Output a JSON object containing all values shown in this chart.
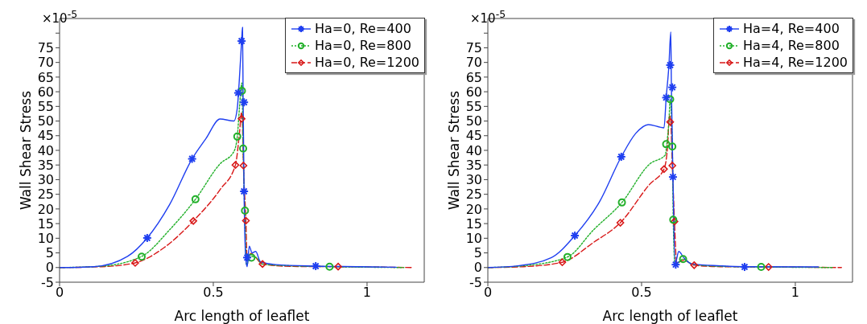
{
  "chart_data": [
    {
      "type": "line",
      "xlabel": "Arc length of leaflet",
      "ylabel": "Wall Shear Stress",
      "annotations": [
        "×10$^{-5}$"
      ],
      "xlim": [
        0,
        1.186
      ],
      "ylim": [
        -5,
        85
      ],
      "xticks": [
        0,
        0.5,
        1
      ],
      "yticks": [
        -5,
        0,
        5,
        10,
        15,
        20,
        25,
        30,
        35,
        40,
        45,
        50,
        55,
        60,
        65,
        70,
        75,
        {
          "value": 80,
          "label": null
        }
      ],
      "legend": "top right",
      "series": [
        {
          "name": "Ha=0, Re=400",
          "color": "#1f3ff0",
          "line_style": "solid",
          "x": [
            0,
            0.112,
            0.221,
            0.285,
            0.358,
            0.431,
            0.476,
            0.522,
            0.567,
            0.578,
            0.584,
            0.592,
            0.595,
            0.597,
            0.6,
            0.606,
            0.61,
            0.617,
            0.626,
            0.638,
            0.653,
            0.703,
            0.831,
            0.977,
            1.095
          ],
          "values": [
            0,
            0.3,
            3.8,
            10.1,
            21.5,
            37.1,
            44,
            50.7,
            50,
            54.4,
            63,
            77.3,
            82,
            56.6,
            26,
            2.5,
            0.3,
            7.3,
            5,
            5.5,
            2,
            1,
            0.5,
            0.3,
            0.1
          ]
        },
        {
          "name": "Ha=0, Re=800",
          "color": "#22b02a",
          "line_style": "dotted",
          "x": [
            0,
            0.13,
            0.267,
            0.358,
            0.442,
            0.522,
            0.567,
            0.578,
            0.585,
            0.593,
            0.597,
            0.602,
            0.608,
            0.622,
            0.64,
            0.658,
            0.749,
            0.878,
            1.12
          ],
          "values": [
            0,
            0.4,
            3.8,
            12.9,
            23.3,
            35.4,
            39.6,
            44.7,
            54.4,
            63,
            40.7,
            19.4,
            1,
            3.8,
            3.4,
            1.2,
            0.6,
            0.3,
            0
          ]
        },
        {
          "name": "Ha=0, Re=1200",
          "color": "#d81818",
          "line_style": "dashed",
          "x": [
            0,
            0.139,
            0.246,
            0.34,
            0.435,
            0.522,
            0.572,
            0.585,
            0.592,
            0.595,
            0.598,
            0.606,
            0.61,
            0.622,
            0.66,
            0.749,
            0.906,
            1.15
          ],
          "values": [
            0,
            0.3,
            1.6,
            6.8,
            15.9,
            26.6,
            35,
            45.8,
            53,
            48,
            34.8,
            16,
            2.5,
            4.8,
            1.2,
            0.4,
            0.3,
            0
          ]
        },
        {
          "type": "scatter",
          "color": "#1f3ff0",
          "marker": "cross",
          "x": [
            0.285,
            0.431,
            0.581,
            0.592,
            0.6,
            0.6,
            0.61,
            0.833
          ],
          "values": [
            10.1,
            37.1,
            59.6,
            77.3,
            56.4,
            26,
            3.4,
            0.5
          ]
        },
        {
          "type": "scatter",
          "color": "#22b02a",
          "marker": "circle",
          "x": [
            0.267,
            0.442,
            0.578,
            0.593,
            0.597,
            0.603,
            0.624,
            0.878
          ],
          "values": [
            3.7,
            23.3,
            44.7,
            60.3,
            40.6,
            19.4,
            3.4,
            0.3
          ]
        },
        {
          "type": "scatter",
          "color": "#d81818",
          "marker": "diamond",
          "x": [
            0.246,
            0.435,
            0.572,
            0.592,
            0.598,
            0.606,
            0.66,
            0.906
          ],
          "values": [
            1.6,
            15.9,
            35,
            50.8,
            34.8,
            16,
            1.2,
            0.3
          ]
        }
      ]
    },
    {
      "type": "line",
      "xlabel": "Arc length of leaflet",
      "ylabel": "Wall Shear Stress",
      "annotations": [
        "×10$^{-5}$"
      ],
      "xlim": [
        0,
        1.186
      ],
      "ylim": [
        -5,
        85
      ],
      "xticks": [
        0,
        0.5,
        1
      ],
      "yticks": [
        -5,
        0,
        5,
        10,
        15,
        20,
        25,
        30,
        35,
        40,
        45,
        50,
        55,
        60,
        65,
        70,
        75,
        {
          "value": 80,
          "label": null
        }
      ],
      "legend": "top right",
      "series": [
        {
          "name": "Ha=4, Re=400",
          "color": "#1f3ff0",
          "line_style": "solid",
          "x": [
            0,
            0.098,
            0.207,
            0.283,
            0.363,
            0.434,
            0.481,
            0.522,
            0.573,
            0.58,
            0.589,
            0.595,
            0.597,
            0.602,
            0.609,
            0.621,
            0.637,
            0.664,
            0.755,
            0.833,
            1.075
          ],
          "values": [
            0,
            0.6,
            3.4,
            10.9,
            22.4,
            37.8,
            45.8,
            48.8,
            47.7,
            57.9,
            69.1,
            80.4,
            61.3,
            30.9,
            1.2,
            5.5,
            3.4,
            1.2,
            0.6,
            0.3,
            0.2
          ]
        },
        {
          "name": "Ha=4, Re=800",
          "color": "#22b02a",
          "line_style": "dotted",
          "x": [
            0,
            0.116,
            0.259,
            0.344,
            0.436,
            0.527,
            0.577,
            0.582,
            0.589,
            0.593,
            0.6,
            0.603,
            0.609,
            0.635,
            0.664,
            0.755,
            0.889,
            1.12
          ],
          "values": [
            0,
            0.6,
            3.6,
            12.9,
            22.2,
            35.4,
            38.4,
            42.1,
            50,
            57.4,
            41.3,
            16.3,
            0.8,
            2.9,
            1.2,
            0.4,
            0.2,
            0
          ]
        },
        {
          "name": "Ha=4, Re=1200",
          "color": "#d81818",
          "line_style": "dashed",
          "x": [
            0,
            0.116,
            0.242,
            0.344,
            0.431,
            0.527,
            0.573,
            0.584,
            0.591,
            0.595,
            0.6,
            0.607,
            0.614,
            0.637,
            0.671,
            0.755,
            0.913,
            1.15
          ],
          "values": [
            0,
            0.3,
            1.8,
            8.6,
            15.3,
            28.5,
            33.6,
            40.6,
            51.8,
            49.7,
            34.8,
            15.7,
            1.6,
            2.5,
            0.8,
            0.3,
            0.2,
            0
          ]
        },
        {
          "type": "scatter",
          "color": "#1f3ff0",
          "marker": "cross",
          "x": [
            0.283,
            0.434,
            0.58,
            0.593,
            0.6,
            0.602,
            0.611,
            0.835
          ],
          "values": [
            10.9,
            37.8,
            58,
            69.1,
            61.5,
            30.9,
            1,
            0.2
          ]
        },
        {
          "type": "scatter",
          "color": "#22b02a",
          "marker": "circle",
          "x": [
            0.259,
            0.436,
            0.58,
            0.593,
            0.6,
            0.603,
            0.635,
            0.889
          ],
          "values": [
            3.6,
            22.2,
            42.1,
            57.4,
            41.3,
            16.3,
            2.9,
            0.2
          ]
        },
        {
          "type": "scatter",
          "color": "#d81818",
          "marker": "diamond",
          "x": [
            0.242,
            0.431,
            0.573,
            0.593,
            0.6,
            0.607,
            0.671,
            0.913
          ],
          "values": [
            1.8,
            15.3,
            33.6,
            49.7,
            34.8,
            15.7,
            0.8,
            0.2
          ]
        }
      ]
    }
  ]
}
